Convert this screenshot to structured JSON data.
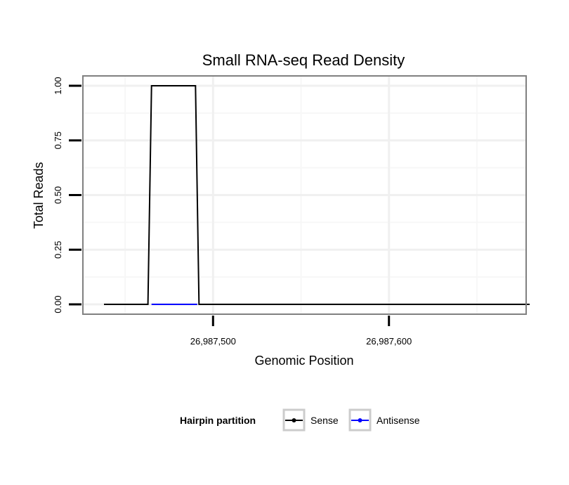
{
  "chart_data": {
    "type": "line",
    "title": "Small RNA-seq Read Density",
    "xlabel": "Genomic Position",
    "ylabel": "Total Reads",
    "xlim": [
      26987426,
      26987678
    ],
    "ylim": [
      -0.045,
      1.045
    ],
    "x_ticks": [
      {
        "value": 26987500,
        "label": "26,987,500"
      },
      {
        "value": 26987600,
        "label": "26,987,600"
      }
    ],
    "y_ticks": [
      {
        "value": 0,
        "label": "0.00"
      },
      {
        "value": 0.25,
        "label": "0.25"
      },
      {
        "value": 0.5,
        "label": "0.50"
      },
      {
        "value": 0.75,
        "label": "0.75"
      },
      {
        "value": 1.0,
        "label": "1.00"
      }
    ],
    "grid": true,
    "legend": {
      "title": "Hairpin partition",
      "position": "bottom"
    },
    "series": [
      {
        "name": "Sense",
        "color": "#000000",
        "x": [
          26987438,
          26987463,
          26987465,
          26987490,
          26987492,
          26987680
        ],
        "y": [
          0,
          0,
          1,
          1,
          0,
          0
        ]
      },
      {
        "name": "Antisense",
        "color": "#0000ff",
        "x": [
          26987465,
          26987491
        ],
        "y": [
          0,
          0
        ]
      }
    ]
  }
}
